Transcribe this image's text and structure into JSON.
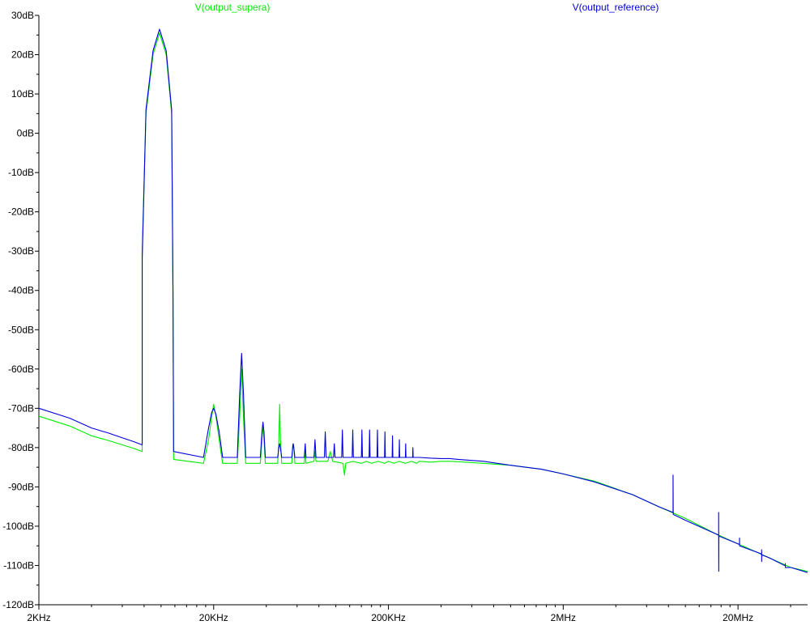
{
  "chart_data": {
    "type": "line",
    "x_scale": "log",
    "xlim": [
      2000,
      50000000
    ],
    "ylim": [
      -120,
      30
    ],
    "x_tick_labels": [
      {
        "value": 2000,
        "label": "2KHz"
      },
      {
        "value": 20000,
        "label": "20KHz"
      },
      {
        "value": 200000,
        "label": "200KHz"
      },
      {
        "value": 2000000,
        "label": "2MHz"
      },
      {
        "value": 20000000,
        "label": "20MHz"
      }
    ],
    "y_tick_labels": [
      {
        "value": 30,
        "label": "30dB"
      },
      {
        "value": 20,
        "label": "20dB"
      },
      {
        "value": 10,
        "label": "10dB"
      },
      {
        "value": 0,
        "label": "0dB"
      },
      {
        "value": -10,
        "label": "-10dB"
      },
      {
        "value": -20,
        "label": "-20dB"
      },
      {
        "value": -30,
        "label": "-30dB"
      },
      {
        "value": -40,
        "label": "-40dB"
      },
      {
        "value": -50,
        "label": "-50dB"
      },
      {
        "value": -60,
        "label": "-60dB"
      },
      {
        "value": -70,
        "label": "-70dB"
      },
      {
        "value": -80,
        "label": "-80dB"
      },
      {
        "value": -90,
        "label": "-90dB"
      },
      {
        "value": -100,
        "label": "-100dB"
      },
      {
        "value": -110,
        "label": "-110dB"
      },
      {
        "value": -120,
        "label": "-120dB"
      }
    ],
    "grid": false,
    "legend_placement": "top",
    "series": [
      {
        "name": "V(output_supera)",
        "color": "#00ee00",
        "points": [
          [
            2000,
            -72
          ],
          [
            3000,
            -74.5
          ],
          [
            4000,
            -77
          ],
          [
            5000,
            -78.2
          ],
          [
            6000,
            -79.3
          ],
          [
            7000,
            -80.2
          ],
          [
            7800,
            -81
          ],
          [
            7800,
            -30
          ],
          [
            8200,
            5
          ],
          [
            9000,
            20
          ],
          [
            9800,
            25.5
          ],
          [
            10700,
            20
          ],
          [
            11500,
            5
          ],
          [
            11700,
            -40
          ],
          [
            11800,
            -83
          ],
          [
            17500,
            -84
          ],
          [
            18700,
            -78
          ],
          [
            19500,
            -72
          ],
          [
            20000,
            -69
          ],
          [
            20600,
            -72
          ],
          [
            21500,
            -78
          ],
          [
            22500,
            -84
          ],
          [
            27300,
            -84
          ],
          [
            28200,
            -72
          ],
          [
            28900,
            -60
          ],
          [
            29600,
            -72
          ],
          [
            30500,
            -84
          ],
          [
            37000,
            -84
          ],
          [
            37800,
            -78
          ],
          [
            38300,
            -74
          ],
          [
            38800,
            -78
          ],
          [
            39500,
            -84
          ],
          [
            46500,
            -84
          ],
          [
            47200,
            -78
          ],
          [
            47700,
            -69
          ],
          [
            48200,
            -78
          ],
          [
            49000,
            -84
          ],
          [
            56000,
            -84
          ],
          [
            56600,
            -80
          ],
          [
            57000,
            -79
          ],
          [
            57500,
            -80
          ],
          [
            58300,
            -84
          ],
          [
            66000,
            -84
          ],
          [
            66800,
            -81
          ],
          [
            67500,
            -84
          ],
          [
            75000,
            -83.5
          ],
          [
            76000,
            -81
          ],
          [
            77000,
            -83.5
          ],
          [
            90000,
            -83.5
          ],
          [
            93000,
            -81
          ],
          [
            96000,
            -83.5
          ],
          [
            110000,
            -84
          ],
          [
            112000,
            -87
          ],
          [
            114000,
            -84
          ],
          [
            125000,
            -83.5
          ],
          [
            140000,
            -84
          ],
          [
            150000,
            -83.5
          ],
          [
            160000,
            -84
          ],
          [
            175000,
            -83.5
          ],
          [
            190000,
            -84
          ],
          [
            200000,
            -83.5
          ],
          [
            215000,
            -84
          ],
          [
            230000,
            -83.5
          ],
          [
            250000,
            -84
          ],
          [
            270000,
            -83.5
          ],
          [
            290000,
            -84
          ],
          [
            300000,
            -83.5
          ],
          [
            350000,
            -83.7
          ],
          [
            400000,
            -83.5
          ],
          [
            450000,
            -83.5
          ],
          [
            500000,
            -83.6
          ],
          [
            700000,
            -84
          ],
          [
            1000000,
            -84.5
          ],
          [
            1500000,
            -85.5
          ],
          [
            2000000,
            -86.7
          ],
          [
            3000000,
            -88.5
          ],
          [
            5000000,
            -92
          ],
          [
            7000000,
            -95
          ],
          [
            10000000,
            -98
          ],
          [
            15000000,
            -102
          ],
          [
            20000000,
            -104.5
          ],
          [
            30000000,
            -108
          ],
          [
            40000000,
            -110.5
          ],
          [
            50000000,
            -111.5
          ]
        ]
      },
      {
        "name": "V(output_reference)",
        "color": "#0000dd",
        "points": [
          [
            2000,
            -70
          ],
          [
            3000,
            -72.5
          ],
          [
            4000,
            -75
          ],
          [
            5000,
            -76.3
          ],
          [
            6000,
            -77.5
          ],
          [
            7000,
            -78.5
          ],
          [
            7800,
            -79.3
          ],
          [
            7800,
            -32
          ],
          [
            8200,
            6
          ],
          [
            9000,
            21
          ],
          [
            9800,
            26.5
          ],
          [
            10700,
            21
          ],
          [
            11500,
            6
          ],
          [
            11700,
            -40
          ],
          [
            11800,
            -81
          ],
          [
            17500,
            -82.5
          ],
          [
            18700,
            -75
          ],
          [
            19500,
            -71
          ],
          [
            20000,
            -70
          ],
          [
            20600,
            -71.5
          ],
          [
            21500,
            -76
          ],
          [
            22500,
            -82.5
          ],
          [
            27300,
            -82.5
          ],
          [
            28200,
            -66
          ],
          [
            28900,
            -56
          ],
          [
            29600,
            -66
          ],
          [
            30500,
            -82.5
          ],
          [
            37000,
            -82.5
          ],
          [
            37800,
            -76
          ],
          [
            38300,
            -73.5
          ],
          [
            38800,
            -76
          ],
          [
            39500,
            -82.5
          ],
          [
            46500,
            -82.5
          ],
          [
            47200,
            -80
          ],
          [
            47700,
            -79
          ],
          [
            48200,
            -80
          ],
          [
            49000,
            -82.5
          ],
          [
            56000,
            -82.5
          ],
          [
            56600,
            -80
          ],
          [
            57000,
            -79
          ],
          [
            57500,
            -80
          ],
          [
            58300,
            -82.5
          ],
          [
            66000,
            -82.5
          ],
          [
            66800,
            -79
          ],
          [
            67500,
            -82.5
          ],
          [
            75000,
            -82.5
          ],
          [
            76000,
            -78
          ],
          [
            77000,
            -82.5
          ],
          [
            86000,
            -82.5
          ],
          [
            87000,
            -76
          ],
          [
            88000,
            -82.5
          ],
          [
            97000,
            -82.5
          ],
          [
            98000,
            -79
          ],
          [
            99000,
            -82.5
          ],
          [
            108000,
            -82.5
          ],
          [
            109000,
            -75.5
          ],
          [
            110000,
            -82.5
          ],
          [
            124000,
            -82.5
          ],
          [
            125000,
            -75.5
          ],
          [
            126000,
            -82.5
          ],
          [
            140000,
            -82.5
          ],
          [
            141000,
            -75.5
          ],
          [
            142000,
            -82.5
          ],
          [
            155000,
            -82.5
          ],
          [
            156000,
            -75.5
          ],
          [
            157000,
            -82.5
          ],
          [
            172000,
            -82.5
          ],
          [
            173000,
            -75.5
          ],
          [
            174000,
            -82.5
          ],
          [
            190000,
            -82.5
          ],
          [
            191000,
            -76
          ],
          [
            192000,
            -82.5
          ],
          [
            210000,
            -82.5
          ],
          [
            211000,
            -77
          ],
          [
            212000,
            -82.5
          ],
          [
            230000,
            -82.5
          ],
          [
            231000,
            -78
          ],
          [
            232000,
            -82.5
          ],
          [
            250000,
            -82.5
          ],
          [
            251000,
            -79
          ],
          [
            252000,
            -82.5
          ],
          [
            275000,
            -82.5
          ],
          [
            276000,
            -80
          ],
          [
            277000,
            -82.5
          ],
          [
            300000,
            -82.5
          ],
          [
            350000,
            -82.7
          ],
          [
            400000,
            -82.8
          ],
          [
            450000,
            -82.8
          ],
          [
            500000,
            -83
          ],
          [
            700000,
            -83.5
          ],
          [
            1000000,
            -84.5
          ],
          [
            1500000,
            -85.5
          ],
          [
            2000000,
            -86.7
          ],
          [
            3000000,
            -88.7
          ],
          [
            5000000,
            -92
          ],
          [
            7000000,
            -95
          ],
          [
            8500000,
            -96.5
          ],
          [
            8500000,
            -87
          ],
          [
            8520000,
            -97
          ],
          [
            10000000,
            -98.5
          ],
          [
            15000000,
            -102
          ],
          [
            15500000,
            -102.3
          ],
          [
            15500000,
            -96.5
          ],
          [
            15520000,
            -111.5
          ],
          [
            15540000,
            -102.5
          ],
          [
            20000000,
            -104.5
          ],
          [
            20400000,
            -104.7
          ],
          [
            20400000,
            -103
          ],
          [
            20420000,
            -105
          ],
          [
            27000000,
            -107
          ],
          [
            27300000,
            -107.2
          ],
          [
            27300000,
            -106
          ],
          [
            27320000,
            -109
          ],
          [
            27340000,
            -107.3
          ],
          [
            30000000,
            -108
          ],
          [
            37000000,
            -110
          ],
          [
            37300000,
            -110.1
          ],
          [
            37300000,
            -109.5
          ],
          [
            37320000,
            -110.5
          ],
          [
            40000000,
            -110.5
          ],
          [
            50000000,
            -111.8
          ]
        ]
      }
    ]
  }
}
